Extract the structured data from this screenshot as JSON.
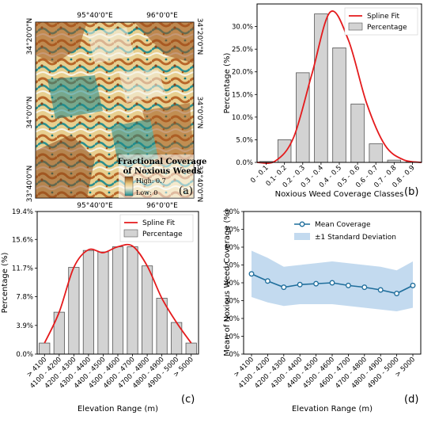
{
  "colors": {
    "bar_fill": "#d3d3d3",
    "bar_edge": "#555555",
    "spline": "#e41a1c",
    "mean_line": "#1f6e9c",
    "band": "#a9cbe8",
    "map_high": "#a0521d",
    "map_mid": "#f2e6b8",
    "map_low": "#1b8a8c",
    "snow": "#f7f9fb"
  },
  "panel_a": {
    "label": "(a)",
    "top_lon_labels": [
      "95°40'0\"E",
      "96°0'0\"E"
    ],
    "bottom_lon_labels": [
      "95°40'0\"E",
      "96°0'0\"E"
    ],
    "left_lat_labels": [
      "34°20'0\"N",
      "34°0'0\"N",
      "33°40'0\"N"
    ],
    "right_lat_labels": [
      "34°20'0\"N",
      "34°0'0\"N",
      "33°40'0\"N"
    ],
    "legend_title_1": "Fractional Coverage",
    "legend_title_2": "of Noxious Weeds",
    "legend_high": "High: 0.7",
    "legend_low": "Low: 0"
  },
  "chart_data": [
    {
      "id": "b",
      "type": "bar",
      "panel_label": "(b)",
      "xlabel": "Noxious Weed Coverage Classes",
      "ylabel": "Percentage (%)",
      "categories": [
        "0 - 0.1",
        "0.1- 0.2",
        "0.2 - 0.3",
        "0.3 - 0.4",
        "0.4 - 0.5",
        "0.5 - 0.6",
        "0.6 - 0.7",
        "0.7 - 0.8",
        "0.8 - 0.9"
      ],
      "values": [
        0.2,
        5.0,
        19.8,
        32.8,
        25.3,
        12.9,
        4.1,
        0.5,
        0.1
      ],
      "ylim": [
        0,
        35
      ],
      "yticks": [
        "0.0%",
        "5.0%",
        "10.0%",
        "15.0%",
        "20.0%",
        "25.0%",
        "30.0%"
      ],
      "ytick_values": [
        0,
        5,
        10,
        15,
        20,
        25,
        30
      ],
      "spline_values": [
        0.0,
        0.3,
        5.5,
        19.5,
        33.2,
        27.0,
        13.0,
        3.8,
        0.6,
        0.0
      ],
      "legend": [
        "Spline Fit",
        "Percentage"
      ],
      "legend_position": "top-right"
    },
    {
      "id": "c",
      "type": "bar",
      "panel_label": "(c)",
      "xlabel": "Elevation Range (m)",
      "ylabel": "Percentage (%)",
      "categories": [
        "> 4100",
        "4100 - 4200",
        "4200 - 4300",
        "4300 - 4400",
        "4400 - 4500",
        "4500 - 4600",
        "4600 - 4700",
        "4700 - 4800",
        "4800 - 4900",
        "4900 - 5000",
        "> 5000"
      ],
      "values": [
        1.5,
        5.7,
        11.8,
        14.1,
        13.9,
        14.6,
        14.6,
        12.0,
        7.6,
        4.3,
        1.5
      ],
      "ylim": [
        0,
        19.4
      ],
      "yticks": [
        "0.0%",
        "3.9%",
        "7.8%",
        "11.7%",
        "15.6%",
        "19.4%"
      ],
      "ytick_values": [
        0,
        3.9,
        7.8,
        11.7,
        15.6,
        19.4
      ],
      "spline_values": [
        1.5,
        5.7,
        11.8,
        14.2,
        13.8,
        14.6,
        14.7,
        12.0,
        7.6,
        4.3,
        1.5
      ],
      "legend": [
        "Spline Fit",
        "Percentage"
      ],
      "legend_position": "top-right"
    },
    {
      "id": "d",
      "type": "line",
      "panel_label": "(d)",
      "xlabel": "Elevation Range (m)",
      "ylabel": "Mean of Noxious Weed Coverage (%)",
      "categories": [
        "> 4100",
        "4100 - 4200",
        "4200 - 4300",
        "4300 - 4400",
        "4400 - 4500",
        "4500 - 4600",
        "4600 - 4700",
        "4700 - 4800",
        "4800 - 4900",
        "4900 - 5000",
        "> 5000"
      ],
      "series": [
        {
          "name": "Mean Coverage",
          "values": [
            45,
            41,
            37.5,
            39,
            39.5,
            40,
            38.5,
            37.5,
            36,
            34,
            38.5
          ]
        },
        {
          "name": "±1 Standard Deviation",
          "lower": [
            32,
            29,
            27,
            28,
            28,
            28,
            27,
            26,
            25,
            24,
            26
          ],
          "upper": [
            58,
            54,
            49,
            50,
            51,
            52,
            51,
            50,
            49,
            47,
            52
          ]
        }
      ],
      "ylim": [
        0,
        80
      ],
      "yticks": [
        "0%",
        "10%",
        "20%",
        "30%",
        "40%",
        "50%",
        "60%",
        "70%",
        "80%"
      ],
      "ytick_values": [
        0,
        10,
        20,
        30,
        40,
        50,
        60,
        70,
        80
      ],
      "legend_position": "top-center"
    }
  ]
}
